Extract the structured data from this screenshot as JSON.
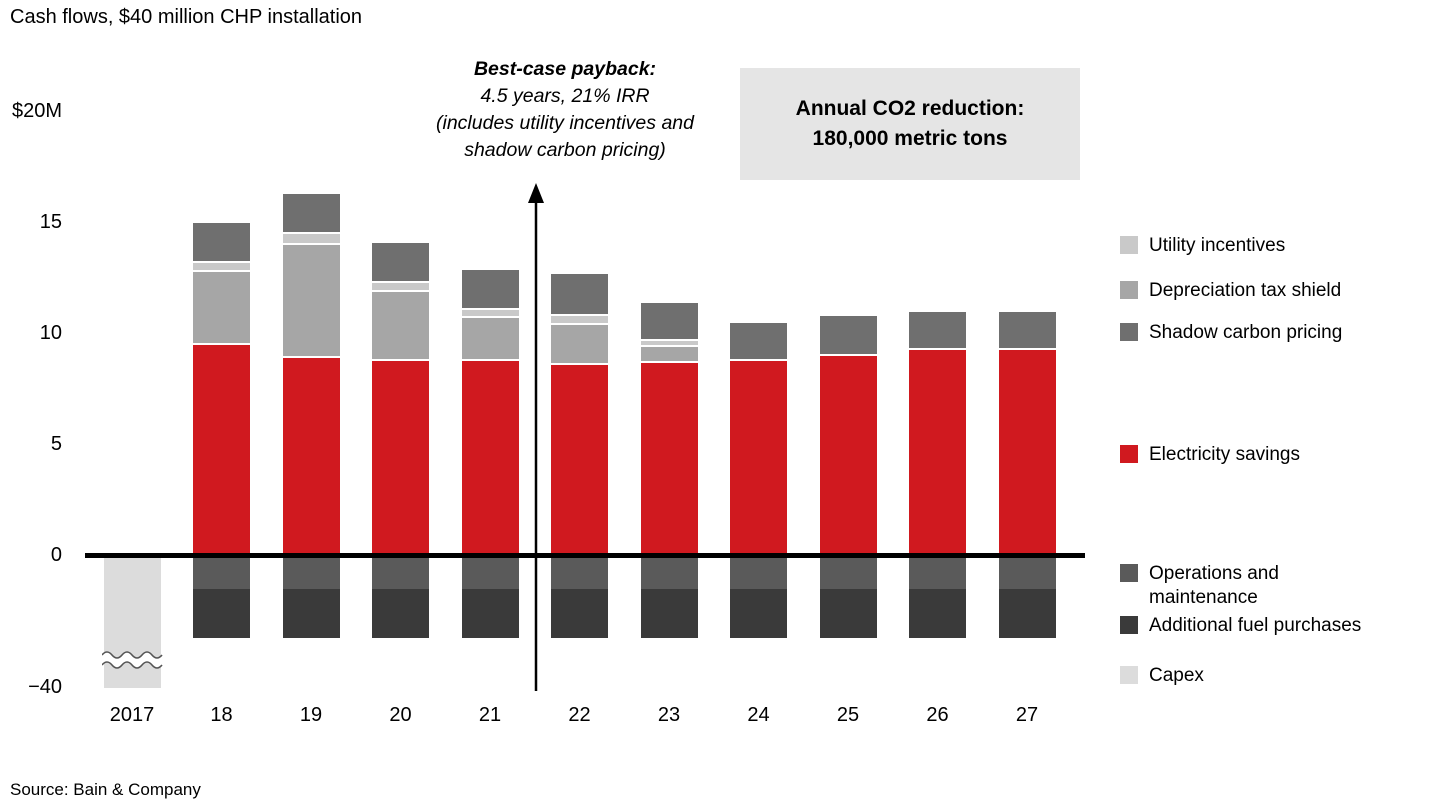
{
  "title": "Cash flows, $40 million CHP installation",
  "source": "Source: Bain & Company",
  "annotation": {
    "line1": "Best-case payback:",
    "line2": "4.5 years, 21% IRR",
    "line3": "(includes utility incentives and",
    "line4": "shadow carbon pricing)"
  },
  "co2_box": {
    "line1": "Annual CO2 reduction:",
    "line2": "180,000 metric tons"
  },
  "axis": {
    "currency_unit": "$M",
    "yticks": [
      {
        "label": "$20M",
        "value": 20
      },
      {
        "label": "15",
        "value": 15
      },
      {
        "label": "10",
        "value": 10
      },
      {
        "label": "5",
        "value": 5
      },
      {
        "label": "0",
        "value": 0
      },
      {
        "label": "−40",
        "value": -40,
        "below_break": true
      }
    ]
  },
  "chart_data": {
    "type": "bar",
    "stacked": true,
    "title": "Cash flows, $40 million CHP installation",
    "xlabel": "",
    "ylabel": "$M",
    "ylim": [
      -40,
      20
    ],
    "axis_break": true,
    "legend_position": "right",
    "categories": [
      "2017",
      "18",
      "19",
      "20",
      "21",
      "22",
      "23",
      "24",
      "25",
      "26",
      "27"
    ],
    "series": [
      {
        "name": "Electricity savings",
        "color": "#d0191f",
        "stack": "pos",
        "values": [
          0,
          9.5,
          8.9,
          8.8,
          8.8,
          8.6,
          8.7,
          8.8,
          9.0,
          9.3,
          9.3
        ]
      },
      {
        "name": "Depreciation tax shield",
        "color": "#a6a6a6",
        "stack": "pos",
        "values": [
          0,
          3.3,
          5.1,
          3.1,
          1.9,
          1.8,
          0.7,
          0,
          0,
          0,
          0
        ]
      },
      {
        "name": "Utility incentives",
        "color": "#c9c9c9",
        "stack": "pos",
        "values": [
          0,
          0.4,
          0.5,
          0.4,
          0.4,
          0.4,
          0.3,
          0,
          0,
          0,
          0
        ]
      },
      {
        "name": "Shadow carbon pricing",
        "color": "#6f6f6f",
        "stack": "pos",
        "values": [
          0,
          1.8,
          1.8,
          1.8,
          1.8,
          1.9,
          1.7,
          1.7,
          1.8,
          1.7,
          1.7
        ]
      },
      {
        "name": "Operations and maintenance",
        "color": "#5a5a5a",
        "stack": "neg",
        "values": [
          0,
          -1.5,
          -1.5,
          -1.5,
          -1.5,
          -1.5,
          -1.5,
          -1.5,
          -1.5,
          -1.5,
          -1.5
        ]
      },
      {
        "name": "Additional fuel purchases",
        "color": "#3a3a3a",
        "stack": "neg",
        "values": [
          0,
          -2.2,
          -2.2,
          -2.2,
          -2.2,
          -2.2,
          -2.2,
          -2.2,
          -2.2,
          -2.2,
          -2.2
        ]
      },
      {
        "name": "Capex",
        "color": "#dcdcdc",
        "stack": "neg",
        "axis_break": true,
        "values": [
          -40,
          0,
          0,
          0,
          0,
          0,
          0,
          0,
          0,
          0,
          0
        ]
      }
    ]
  },
  "legend": [
    {
      "label": "Utility incentives",
      "color": "#c9c9c9"
    },
    {
      "label": "Depreciation tax shield",
      "color": "#a6a6a6"
    },
    {
      "label": "Shadow carbon pricing",
      "color": "#6f6f6f"
    },
    {
      "label": "Electricity savings",
      "color": "#d0191f"
    },
    {
      "label": "Operations and maintenance",
      "color": "#5a5a5a",
      "wrap": true
    },
    {
      "label": "Additional fuel purchases",
      "color": "#3a3a3a"
    },
    {
      "label": "Capex",
      "color": "#dcdcdc"
    }
  ]
}
